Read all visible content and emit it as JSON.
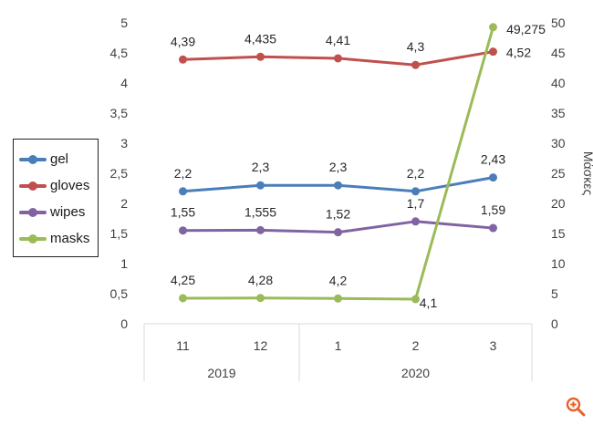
{
  "chart_data": {
    "type": "line",
    "categories": [
      "11",
      "12",
      "1",
      "2",
      "3"
    ],
    "groups": [
      {
        "label": "2019",
        "span": [
          0,
          1
        ]
      },
      {
        "label": "2020",
        "span": [
          2,
          4
        ]
      }
    ],
    "left_axis": {
      "min": 0,
      "max": 5,
      "ticks": [
        "0",
        "0,5",
        "1",
        "1,5",
        "2",
        "2,5",
        "3",
        "3,5",
        "4",
        "4,5",
        "5"
      ]
    },
    "right_axis": {
      "min": 0,
      "max": 50,
      "title": "Μάσκες",
      "ticks": [
        "0",
        "5",
        "10",
        "15",
        "20",
        "25",
        "30",
        "35",
        "40",
        "45",
        "50"
      ]
    },
    "series": [
      {
        "name": "gel",
        "color": "#4a7ebb",
        "axis": "left",
        "values": [
          2.2,
          2.3,
          2.3,
          2.2,
          2.43
        ],
        "labels": [
          "2,2",
          "2,3",
          "2,3",
          "2,2",
          "2,43"
        ]
      },
      {
        "name": "gloves",
        "color": "#c0504d",
        "axis": "left",
        "values": [
          4.39,
          4.435,
          4.41,
          4.3,
          4.52
        ],
        "labels": [
          "4,39",
          "4,435",
          "4,41",
          "4,3",
          "4,52"
        ]
      },
      {
        "name": "wipes",
        "color": "#8064a2",
        "axis": "left",
        "values": [
          1.55,
          1.555,
          1.52,
          1.7,
          1.59
        ],
        "labels": [
          "1,55",
          "1,555",
          "1,52",
          "1,7",
          "1,59"
        ]
      },
      {
        "name": "masks",
        "color": "#9bbb59",
        "axis": "right",
        "values": [
          4.25,
          4.28,
          4.2,
          4.1,
          49.275
        ],
        "labels": [
          "4,25",
          "4,28",
          "4,2",
          "4,1",
          "49,275"
        ]
      }
    ],
    "legend": {
      "position": "left"
    },
    "grid": false
  },
  "zoom_icon": {
    "name": "zoom-in-icon",
    "color": "#e8622a"
  }
}
